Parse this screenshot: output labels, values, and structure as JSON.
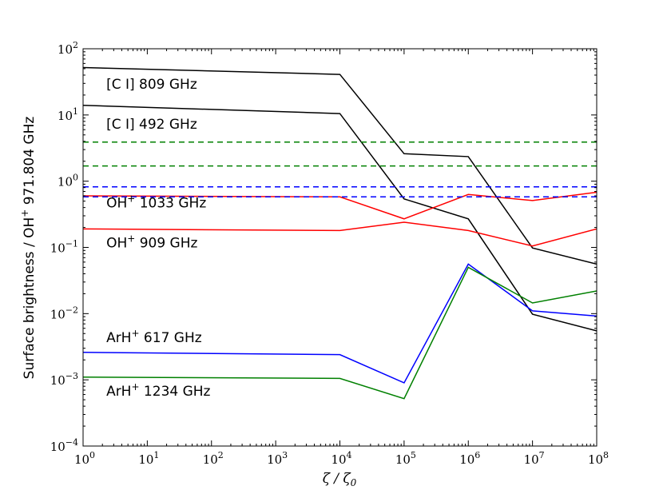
{
  "chart_data": {
    "type": "line",
    "title": "",
    "xlabel": "ζ / ζ0",
    "ylabel": "Surface brightness / OH+ 971.804 GHz",
    "xscale": "log",
    "yscale": "log",
    "xlim": [
      1,
      100000000
    ],
    "ylim": [
      0.0001,
      100
    ],
    "grid": false,
    "x_ticks": [
      {
        "base": "10",
        "exp": "0"
      },
      {
        "base": "10",
        "exp": "1"
      },
      {
        "base": "10",
        "exp": "2"
      },
      {
        "base": "10",
        "exp": "3"
      },
      {
        "base": "10",
        "exp": "4"
      },
      {
        "base": "10",
        "exp": "5"
      },
      {
        "base": "10",
        "exp": "6"
      },
      {
        "base": "10",
        "exp": "7"
      },
      {
        "base": "10",
        "exp": "8"
      }
    ],
    "y_ticks": [
      {
        "base": "10",
        "exp": "−4"
      },
      {
        "base": "10",
        "exp": "−3"
      },
      {
        "base": "10",
        "exp": "−2"
      },
      {
        "base": "10",
        "exp": "−1"
      },
      {
        "base": "10",
        "exp": "0"
      },
      {
        "base": "10",
        "exp": "1"
      },
      {
        "base": "10",
        "exp": "2"
      }
    ],
    "x": [
      1,
      10000,
      100000,
      1000000,
      10000000,
      100000000
    ],
    "series": [
      {
        "name": "[C I] 809 GHz",
        "color": "#000000",
        "dash": "solid",
        "values": [
          52,
          41,
          2.6,
          2.35,
          0.098,
          0.056
        ]
      },
      {
        "name": "[C I] 492 GHz",
        "color": "#000000",
        "dash": "solid",
        "values": [
          14,
          10.5,
          0.54,
          0.27,
          0.0098,
          0.0055
        ]
      },
      {
        "name": "OH+ 1033 GHz",
        "color": "#ff0000",
        "dash": "solid",
        "values": [
          0.6,
          0.58,
          0.27,
          0.63,
          0.51,
          0.68
        ]
      },
      {
        "name": "OH+ 909 GHz",
        "color": "#ff0000",
        "dash": "solid",
        "values": [
          0.19,
          0.18,
          0.24,
          0.18,
          0.105,
          0.19
        ]
      },
      {
        "name": "ArH+ 617 GHz",
        "color": "#0000ff",
        "dash": "solid",
        "values": [
          0.0026,
          0.0024,
          0.0009,
          0.056,
          0.011,
          0.0092
        ]
      },
      {
        "name": "ArH+ 1234 GHz",
        "color": "#008000",
        "dash": "solid",
        "values": [
          0.0011,
          0.00105,
          0.00052,
          0.05,
          0.0145,
          0.022
        ]
      },
      {
        "name": "green dashed (upper)",
        "color": "#008000",
        "dash": "dashed",
        "values": [
          3.9,
          3.9,
          3.9,
          3.9,
          3.9,
          3.9
        ]
      },
      {
        "name": "green dashed (lower)",
        "color": "#008000",
        "dash": "dashed",
        "values": [
          1.7,
          1.7,
          1.7,
          1.7,
          1.7,
          1.7
        ]
      },
      {
        "name": "blue dashed (upper)",
        "color": "#0000ff",
        "dash": "dashed",
        "values": [
          0.82,
          0.82,
          0.82,
          0.82,
          0.82,
          0.82
        ]
      },
      {
        "name": "blue dashed (lower)",
        "color": "#0000ff",
        "dash": "dashed",
        "values": [
          0.58,
          0.58,
          0.58,
          0.58,
          0.58,
          0.58
        ]
      }
    ],
    "annotations": [
      {
        "name": "[C I] 809 GHz",
        "text": "[C I] 809 GHz",
        "superscript": "",
        "suffix": "",
        "x": 2.3,
        "y": 25
      },
      {
        "name": "[C I] 492 GHz",
        "text": "[C I] 492 GHz",
        "superscript": "",
        "suffix": "",
        "x": 2.3,
        "y": 6.2
      },
      {
        "name": "OH+ 1033 GHz",
        "text": "OH",
        "superscript": "+",
        "suffix": " 1033 GHz",
        "x": 2.3,
        "y": 0.4
      },
      {
        "name": "OH+ 909 GHz",
        "text": "OH",
        "superscript": "+",
        "suffix": " 909 GHz",
        "x": 2.3,
        "y": 0.1
      },
      {
        "name": "ArH+ 617 GHz",
        "text": "ArH",
        "superscript": "+",
        "suffix": " 617 GHz",
        "x": 2.3,
        "y": 0.0037
      },
      {
        "name": "ArH+ 1234 GHz",
        "text": "ArH",
        "superscript": "+",
        "suffix": " 1234 GHz",
        "x": 2.3,
        "y": 0.00058
      }
    ]
  }
}
